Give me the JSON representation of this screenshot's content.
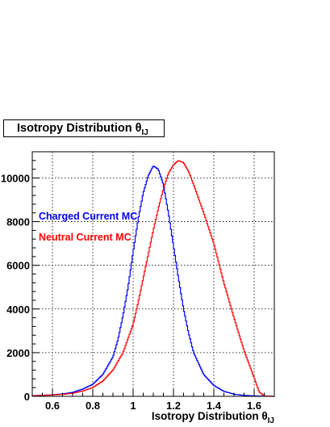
{
  "chart_data": {
    "type": "line",
    "title": "Isotropy Distribution θ",
    "title_subscript": "IJ",
    "xlabel": "Isotropy Distribution θ",
    "xlabel_subscript": "IJ",
    "ylabel": "",
    "xlim": [
      0.5,
      1.7
    ],
    "ylim": [
      0,
      11200
    ],
    "x_ticks": [
      0.6,
      0.8,
      1.0,
      1.2,
      1.4,
      1.6
    ],
    "x_tick_labels": [
      "0.6",
      "0.8",
      "1",
      "1.2",
      "1.4",
      "1.6"
    ],
    "y_ticks": [
      0,
      2000,
      4000,
      6000,
      8000,
      10000
    ],
    "y_tick_labels": [
      "0",
      "2000",
      "4000",
      "6000",
      "8000",
      "10000"
    ],
    "grid": true,
    "legend_placement": "left",
    "series": [
      {
        "name": "Charged Current MC",
        "color": "#0000ff",
        "x": [
          0.5,
          0.55,
          0.6,
          0.65,
          0.7,
          0.75,
          0.8,
          0.85,
          0.9,
          0.925,
          0.95,
          0.975,
          1.0,
          1.025,
          1.05,
          1.075,
          1.1,
          1.125,
          1.15,
          1.175,
          1.2,
          1.225,
          1.25,
          1.275,
          1.3,
          1.35,
          1.4,
          1.45,
          1.5,
          1.55,
          1.6,
          1.65,
          1.7
        ],
        "y": [
          30,
          50,
          70,
          110,
          180,
          330,
          550,
          1000,
          1800,
          2600,
          3700,
          5000,
          6600,
          8100,
          9300,
          10100,
          10550,
          10400,
          9700,
          8400,
          6900,
          5400,
          4000,
          2900,
          2000,
          1000,
          500,
          230,
          100,
          45,
          20,
          5,
          0
        ]
      },
      {
        "name": "Neutral Current MC",
        "color": "#ff0000",
        "x": [
          0.5,
          0.55,
          0.6,
          0.65,
          0.7,
          0.75,
          0.8,
          0.85,
          0.9,
          0.95,
          1.0,
          1.025,
          1.05,
          1.075,
          1.1,
          1.125,
          1.15,
          1.175,
          1.2,
          1.225,
          1.25,
          1.275,
          1.3,
          1.35,
          1.4,
          1.45,
          1.5,
          1.55,
          1.6,
          1.625,
          1.65,
          1.7
        ],
        "y": [
          20,
          40,
          60,
          90,
          140,
          240,
          400,
          700,
          1200,
          2000,
          3300,
          4300,
          5400,
          6500,
          7600,
          8600,
          9500,
          10200,
          10600,
          10800,
          10700,
          10300,
          9700,
          8400,
          7000,
          5200,
          3600,
          2100,
          850,
          200,
          20,
          0
        ]
      }
    ]
  }
}
